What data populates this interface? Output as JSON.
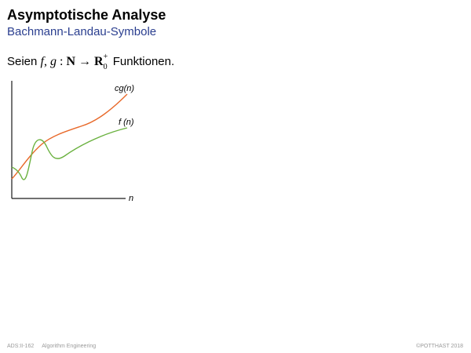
{
  "slide": {
    "title": "Asymptotische Analyse",
    "subtitle": "Bachmann-Landau-Symbole",
    "statement": {
      "prefix": "Seien",
      "f": "f",
      "comma": ",",
      "g": "g",
      "colon": ":",
      "domain": "N",
      "arrow": "→",
      "codomain": "R",
      "codomain_sup": "+",
      "codomain_sub": "0",
      "suffix": "Funktionen."
    }
  },
  "graph": {
    "cg_label": "cg(n)",
    "f_label": "f (n)",
    "x_label": "n",
    "colors": {
      "cg": "#e8692a",
      "f": "#6ab13f",
      "axis": "#1a1a1a"
    }
  },
  "footer": {
    "slide_id": "ADS:II-162",
    "course": "Algorithm Engineering",
    "copyright": "©POTTHAST 2018"
  }
}
